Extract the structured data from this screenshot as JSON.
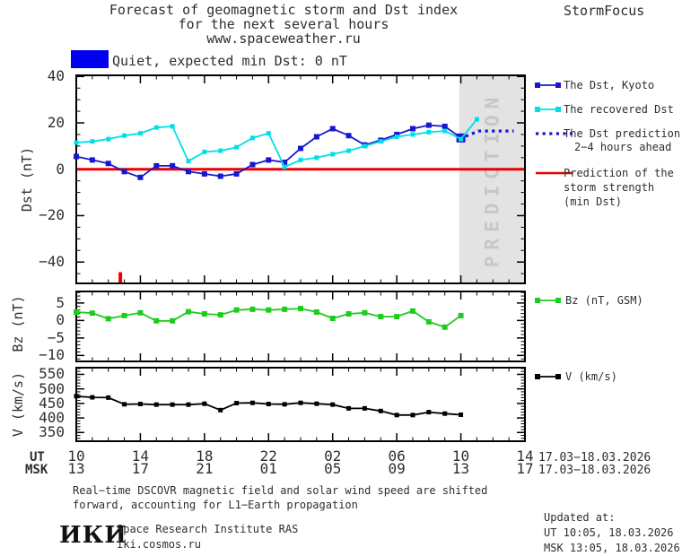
{
  "header": {
    "title_line1": "Forecast of geomagnetic storm and Dst index",
    "title_line2": "for the next several hours",
    "title_line3": "www.spaceweather.ru",
    "brand": "StormFocus"
  },
  "status": {
    "label": "Quiet, expected min Dst: 0 nT",
    "box_color": "#0000ee"
  },
  "legend": {
    "dst": [
      {
        "label_lines": [
          "The Dst, Kyoto"
        ],
        "color": "#1717cf",
        "style": "line-squares"
      },
      {
        "label_lines": [
          "The recovered Dst"
        ],
        "color": "#00dfe8",
        "style": "line-squares"
      },
      {
        "label_lines": [
          "The Dst prediction",
          "2−4 hours ahead"
        ],
        "color": "#1717cf",
        "style": "dotted"
      },
      {
        "label_lines": [
          "Prediction of the",
          "storm strength",
          "(min Dst)"
        ],
        "color": "#ee0000",
        "style": "line"
      }
    ],
    "bz": {
      "label": "Bz (nT, GSM)",
      "color": "#1ecb1e",
      "style": "line-squares"
    },
    "v": {
      "label": "V (km/s)",
      "color": "#000000",
      "style": "line-squares"
    }
  },
  "chart_data": {
    "type": "line",
    "x_total_hours": 28,
    "x_major_every_hours": 4,
    "panels": [
      {
        "name": "dst",
        "ylabel": "Dst (nT)",
        "ylim": [
          -49.2,
          40.5
        ],
        "yticks": [
          40,
          20,
          0,
          -20,
          -40
        ],
        "yminor_step": 5,
        "series": [
          {
            "name": "The Dst, Kyoto",
            "color": "#1717cf",
            "start_hour": 0,
            "marker": 6,
            "last_point_large": true,
            "values": [
              5.5,
              4,
              2.5,
              -1,
              -3.5,
              1.5,
              1.5,
              -1,
              -2,
              -3,
              -2,
              2,
              4,
              3,
              9,
              14,
              17.5,
              14.5,
              10.5,
              12.5,
              15,
              17.5,
              19,
              18.5,
              13.5
            ]
          },
          {
            "name": "The recovered Dst",
            "color": "#00dfe8",
            "start_hour": 0,
            "marker": 5,
            "values": [
              11.5,
              12,
              13,
              14.5,
              15.5,
              18,
              18.5,
              3.5,
              7.5,
              8,
              9.5,
              13.5,
              15.5,
              1,
              4,
              5,
              6.5,
              8,
              10,
              12,
              14,
              15,
              16,
              16.5,
              13,
              21.5
            ]
          }
        ],
        "prediction_dotted": {
          "color": "#1717cf",
          "points_hours_value": [
            [
              24.3,
              14.2
            ],
            [
              25.1,
              16.5
            ],
            [
              27.3,
              16.5
            ]
          ]
        },
        "red_line_value": 0,
        "red_line_color": "#ee0000",
        "prediction_band": {
          "start_hour": 23.9,
          "end_hour": 28,
          "bg": "#e3e3e3",
          "text": "PREDICTION",
          "text_color": "#c7c7c7"
        },
        "event_tick": {
          "hour": 2.75,
          "color": "#ee0000"
        }
      },
      {
        "name": "bz",
        "ylabel": "Bz (nT)",
        "ylim": [
          -11.7,
          8.3
        ],
        "yticks": [
          5,
          0,
          -5,
          -10
        ],
        "yminor_step": 1,
        "series": [
          {
            "name": "Bz (nT, GSM)",
            "color": "#1ecb1e",
            "start_hour": 0,
            "marker": 6,
            "values": [
              2.4,
              2.1,
              0.5,
              1.4,
              2.2,
              -0.1,
              -0.1,
              2.5,
              1.9,
              1.6,
              3,
              3.2,
              3,
              3.2,
              3.4,
              2.4,
              0.6,
              1.9,
              2.2,
              1.1,
              1.1,
              2.7,
              -0.4,
              -1.9,
              1.4
            ]
          }
        ]
      },
      {
        "name": "v",
        "ylabel": "V (km/s)",
        "ylim": [
          320,
          573
        ],
        "yticks": [
          550,
          500,
          450,
          400,
          350
        ],
        "yminor_step": 10,
        "series": [
          {
            "name": "V (km/s)",
            "color": "#000000",
            "start_hour": 0,
            "marker": 5,
            "values": [
              475,
              471,
              470,
              447,
              448,
              446,
              446,
              446,
              449,
              427,
              451,
              452,
              448,
              447,
              452,
              449,
              446,
              433,
              433,
              424,
              410,
              410,
              420,
              415,
              411
            ]
          }
        ]
      }
    ]
  },
  "xaxis": {
    "ut_prefix": "UT",
    "msk_prefix": "MSK",
    "ut_labels": [
      "10",
      "14",
      "18",
      "22",
      "02",
      "06",
      "10",
      "14"
    ],
    "msk_labels": [
      "13",
      "17",
      "21",
      "01",
      "05",
      "09",
      "13",
      "17"
    ],
    "ut_date": "17.03−18.03.2026",
    "msk_date": "17.03−18.03.2026"
  },
  "footer": {
    "note_line1": "Real−time DSCOVR magnetic field and solar wind speed are shifted",
    "note_line2": "forward, accounting for L1−Earth propagation",
    "logo": "ИКИ",
    "institute_line1": "Space Research Institute RAS",
    "institute_line2": "iki.cosmos.ru",
    "updated_label": "Updated at:",
    "updated_ut": "UT  10:05, 18.03.2026",
    "updated_msk": "MSK 13:05, 18.03.2026"
  }
}
